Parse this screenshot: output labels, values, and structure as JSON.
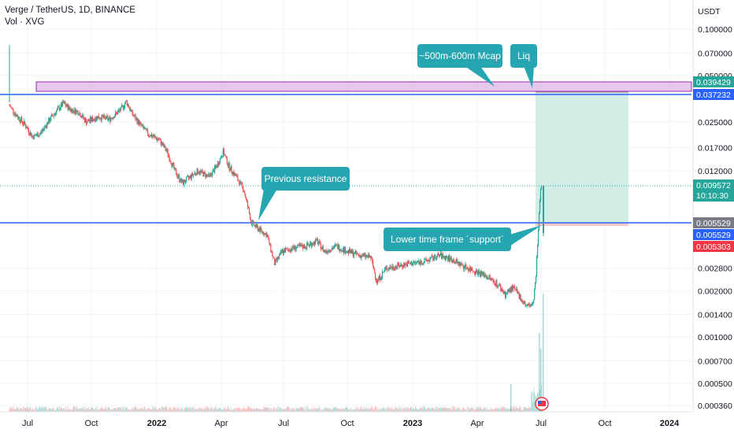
{
  "header": {
    "symbol": "Verge / TetherUS, 1D, BINANCE",
    "volume_label": "Vol · XVG"
  },
  "colors": {
    "up": "#26a69a",
    "down": "#ef5350",
    "grid": "#f0f3fa",
    "hline": "#2962ff",
    "zone_fill": "#e1bee7",
    "zone_stroke": "#9c27b0",
    "target_fill": "#cdebe3",
    "callout": "#26a6b1",
    "last_price": "#26a69a",
    "stop": "#f23645"
  },
  "chart_data": {
    "type": "candlestick",
    "title": "Verge / TetherUS, 1D, BINANCE",
    "x_ticks": [
      "Jul",
      "Oct",
      "2022",
      "Apr",
      "Jul",
      "Oct",
      "2023",
      "Apr",
      "Jul",
      "Oct",
      "2024"
    ],
    "y_unit": "USDT",
    "y_scale": "log",
    "y_ticks": [
      "0.100000",
      "0.070000",
      "0.050000",
      "0.025000",
      "0.017000",
      "0.012000",
      "0.002800",
      "0.002000",
      "0.001400",
      "0.001000",
      "0.000700",
      "0.000500",
      "0.000360"
    ],
    "price_tags": [
      {
        "value": "0.039429",
        "color": "#26a69a"
      },
      {
        "value": "0.037232",
        "color": "#2962ff"
      },
      {
        "value": "0.009572",
        "color": "#26a69a",
        "sub": "10:10:30"
      },
      {
        "value": "0.005529",
        "color": "#787b86"
      },
      {
        "value": "0.005529",
        "color": "#2962ff"
      },
      {
        "value": "0.005303",
        "color": "#f23645"
      }
    ],
    "horizontal_lines": [
      0.037232,
      0.005529
    ],
    "resistance_zone": [
      0.037232,
      0.039429
    ],
    "target_box": [
      0.005303,
      0.037232
    ],
    "annotations": [
      "~500m-600m Mcap",
      "Liq",
      "Previous resistance",
      "Lower time frame ´support´"
    ],
    "price_path": [
      [
        0,
        0.032
      ],
      [
        8,
        0.028
      ],
      [
        20,
        0.024
      ],
      [
        30,
        0.02
      ],
      [
        40,
        0.021
      ],
      [
        55,
        0.027
      ],
      [
        70,
        0.033
      ],
      [
        80,
        0.03
      ],
      [
        90,
        0.029
      ],
      [
        100,
        0.025
      ],
      [
        115,
        0.027
      ],
      [
        130,
        0.026
      ],
      [
        145,
        0.03
      ],
      [
        152,
        0.034
      ],
      [
        160,
        0.028
      ],
      [
        170,
        0.024
      ],
      [
        180,
        0.021
      ],
      [
        195,
        0.019
      ],
      [
        205,
        0.016
      ],
      [
        215,
        0.012
      ],
      [
        225,
        0.01
      ],
      [
        235,
        0.011
      ],
      [
        245,
        0.012
      ],
      [
        260,
        0.011
      ],
      [
        270,
        0.013
      ],
      [
        278,
        0.016
      ],
      [
        285,
        0.013
      ],
      [
        295,
        0.011
      ],
      [
        305,
        0.009
      ],
      [
        315,
        0.0055
      ],
      [
        325,
        0.005
      ],
      [
        335,
        0.0046
      ],
      [
        345,
        0.003
      ],
      [
        355,
        0.0036
      ],
      [
        370,
        0.0038
      ],
      [
        385,
        0.0039
      ],
      [
        400,
        0.0042
      ],
      [
        410,
        0.0036
      ],
      [
        425,
        0.0039
      ],
      [
        440,
        0.0036
      ],
      [
        455,
        0.0034
      ],
      [
        470,
        0.0033
      ],
      [
        478,
        0.0023
      ],
      [
        490,
        0.0028
      ],
      [
        505,
        0.0029
      ],
      [
        520,
        0.003
      ],
      [
        540,
        0.0031
      ],
      [
        560,
        0.0034
      ],
      [
        575,
        0.0032
      ],
      [
        590,
        0.0029
      ],
      [
        605,
        0.0027
      ],
      [
        620,
        0.0025
      ],
      [
        635,
        0.0022
      ],
      [
        645,
        0.0019
      ],
      [
        655,
        0.0021
      ],
      [
        665,
        0.0018
      ],
      [
        672,
        0.0016
      ],
      [
        678,
        0.0016
      ],
      [
        682,
        0.0018
      ],
      [
        685,
        0.0025
      ],
      [
        688,
        0.005
      ],
      [
        691,
        0.00957
      ]
    ]
  }
}
